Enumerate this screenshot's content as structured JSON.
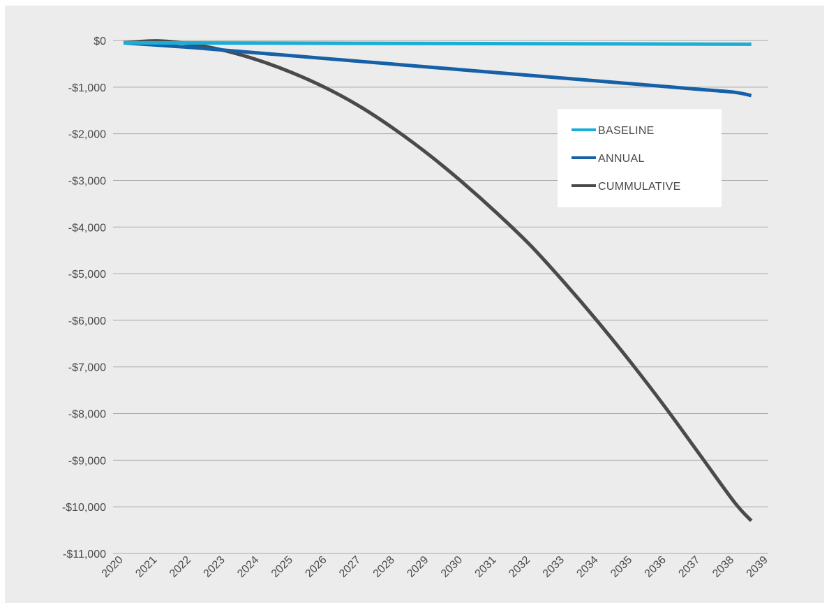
{
  "chart_data": {
    "type": "line",
    "title": "",
    "xlabel": "",
    "ylabel": "",
    "x": [
      2020,
      2021,
      2022,
      2023,
      2024,
      2025,
      2026,
      2027,
      2028,
      2029,
      2030,
      2031,
      2032,
      2033,
      2034,
      2035,
      2036,
      2037,
      2038,
      2039
    ],
    "x_tick_labels": [
      "2020",
      "2021",
      "2022",
      "2023",
      "2024",
      "2025",
      "2026",
      "2027",
      "2028",
      "2029",
      "2030",
      "2031",
      "2032",
      "2033",
      "2034",
      "2035",
      "2036",
      "2037",
      "2038",
      "2039"
    ],
    "ylim": [
      -11000,
      0
    ],
    "y_ticks": [
      0,
      -1000,
      -2000,
      -3000,
      -4000,
      -5000,
      -6000,
      -7000,
      -8000,
      -9000,
      -10000,
      -11000
    ],
    "y_tick_labels": [
      "$0",
      "-$1,000",
      "-$2,000",
      "-$3,000",
      "-$4,000",
      "-$5,000",
      "-$6,000",
      "-$7,000",
      "-$8,000",
      "-$9,000",
      "-$10,000",
      "-$11,000"
    ],
    "grid": "horizontal",
    "legend_position": "top-right",
    "series": [
      {
        "name": "BASELINE",
        "color": "#1aaed6",
        "points": [
          [
            2020,
            -50
          ],
          [
            2038.5,
            -80
          ]
        ]
      },
      {
        "name": "ANNUAL",
        "color": "#1660a8",
        "points": [
          [
            2020,
            -50
          ],
          [
            2021,
            -100
          ],
          [
            2022,
            -150
          ],
          [
            2023,
            -210
          ],
          [
            2024,
            -270
          ],
          [
            2025,
            -330
          ],
          [
            2026,
            -390
          ],
          [
            2027,
            -450
          ],
          [
            2028,
            -510
          ],
          [
            2029,
            -570
          ],
          [
            2030,
            -630
          ],
          [
            2031,
            -690
          ],
          [
            2032,
            -750
          ],
          [
            2033,
            -810
          ],
          [
            2034,
            -870
          ],
          [
            2035,
            -930
          ],
          [
            2036,
            -990
          ],
          [
            2037,
            -1050
          ],
          [
            2038,
            -1110
          ],
          [
            2038.5,
            -1180
          ]
        ]
      },
      {
        "name": "CUMMULATIVE",
        "color": "#4a4a4a",
        "points": [
          [
            2020,
            -50
          ],
          [
            2021,
            -10
          ],
          [
            2022,
            -80
          ],
          [
            2023,
            -220
          ],
          [
            2024,
            -430
          ],
          [
            2025,
            -700
          ],
          [
            2026,
            -1030
          ],
          [
            2027,
            -1430
          ],
          [
            2028,
            -1910
          ],
          [
            2029,
            -2450
          ],
          [
            2030,
            -3050
          ],
          [
            2031,
            -3700
          ],
          [
            2032,
            -4400
          ],
          [
            2033,
            -5200
          ],
          [
            2034,
            -6050
          ],
          [
            2035,
            -6950
          ],
          [
            2036,
            -7900
          ],
          [
            2037,
            -8900
          ],
          [
            2038,
            -9900
          ],
          [
            2038.5,
            -10300
          ]
        ]
      }
    ]
  }
}
